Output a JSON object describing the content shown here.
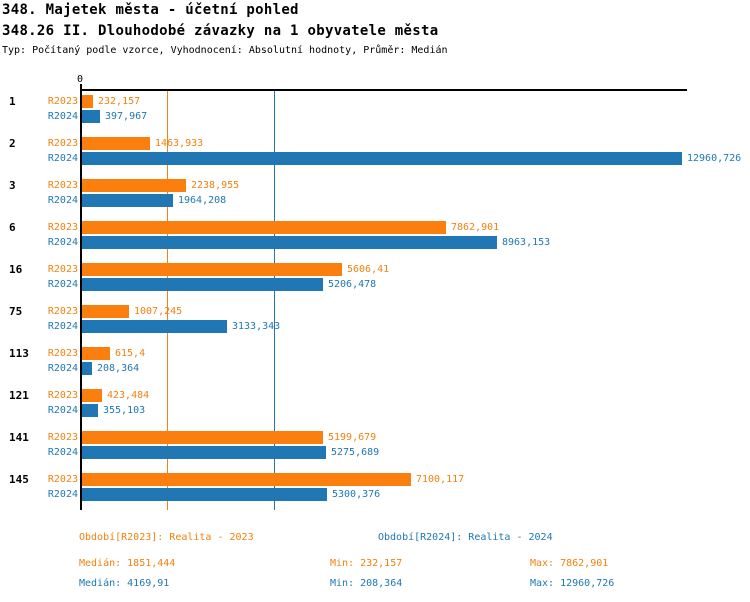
{
  "header": {
    "title": "348. Majetek města - účetní pohled",
    "subtitle": "348.26 II. Dlouhodobé závazky na 1 obyvatele města",
    "meta": "Typ: Počítaný podle vzorce, Vyhodnocení: Absolutní hodnoty, Průměr: Medián"
  },
  "colors": {
    "orange": "#fb7f0e",
    "blue": "#2177b4",
    "axis": "#000000"
  },
  "chart_data": {
    "type": "bar",
    "orientation": "horizontal",
    "title": "348.26 II. Dlouhodobé závazky na 1 obyvatele města",
    "categories": [
      "1",
      "2",
      "3",
      "6",
      "16",
      "75",
      "113",
      "121",
      "141",
      "145"
    ],
    "series": [
      {
        "name": "R2023",
        "color": "#fb7f0e",
        "values": [
          232.157,
          1463.933,
          2238.955,
          7862.901,
          5606.41,
          1007.245,
          615.4,
          423.484,
          5199.679,
          7100.117
        ],
        "labels": [
          "232,157",
          "1463,933",
          "2238,955",
          "7862,901",
          "5606,41",
          "1007,245",
          "615,4",
          "423,484",
          "5199,679",
          "7100,117"
        ]
      },
      {
        "name": "R2024",
        "color": "#2177b4",
        "values": [
          397.967,
          12960.726,
          1964.208,
          8963.153,
          5206.478,
          3133.343,
          208.364,
          355.103,
          5275.689,
          5300.376
        ],
        "labels": [
          "397,967",
          "12960,726",
          "1964,208",
          "8963,153",
          "5206,478",
          "3133,343",
          "208,364",
          "355,103",
          "5275,689",
          "5300,376"
        ]
      }
    ],
    "xlim": [
      0,
      12960.726
    ],
    "axis": {
      "zero_label": "0"
    },
    "grid": "median-lines",
    "medians": {
      "R2023": 1851.444,
      "R2024": 4169.91
    },
    "legend_position": "bottom"
  },
  "footer": {
    "legend_r2023": "Období[R2023]: Realita - 2023",
    "legend_r2024": "Období[R2024]: Realita - 2024",
    "stats_r2023": {
      "median": "Medián: 1851,444",
      "min": "Min: 232,157",
      "max": "Max: 7862,901"
    },
    "stats_r2024": {
      "median": "Medián: 4169,91",
      "min": "Min: 208,364",
      "max": "Max: 12960,726"
    }
  }
}
